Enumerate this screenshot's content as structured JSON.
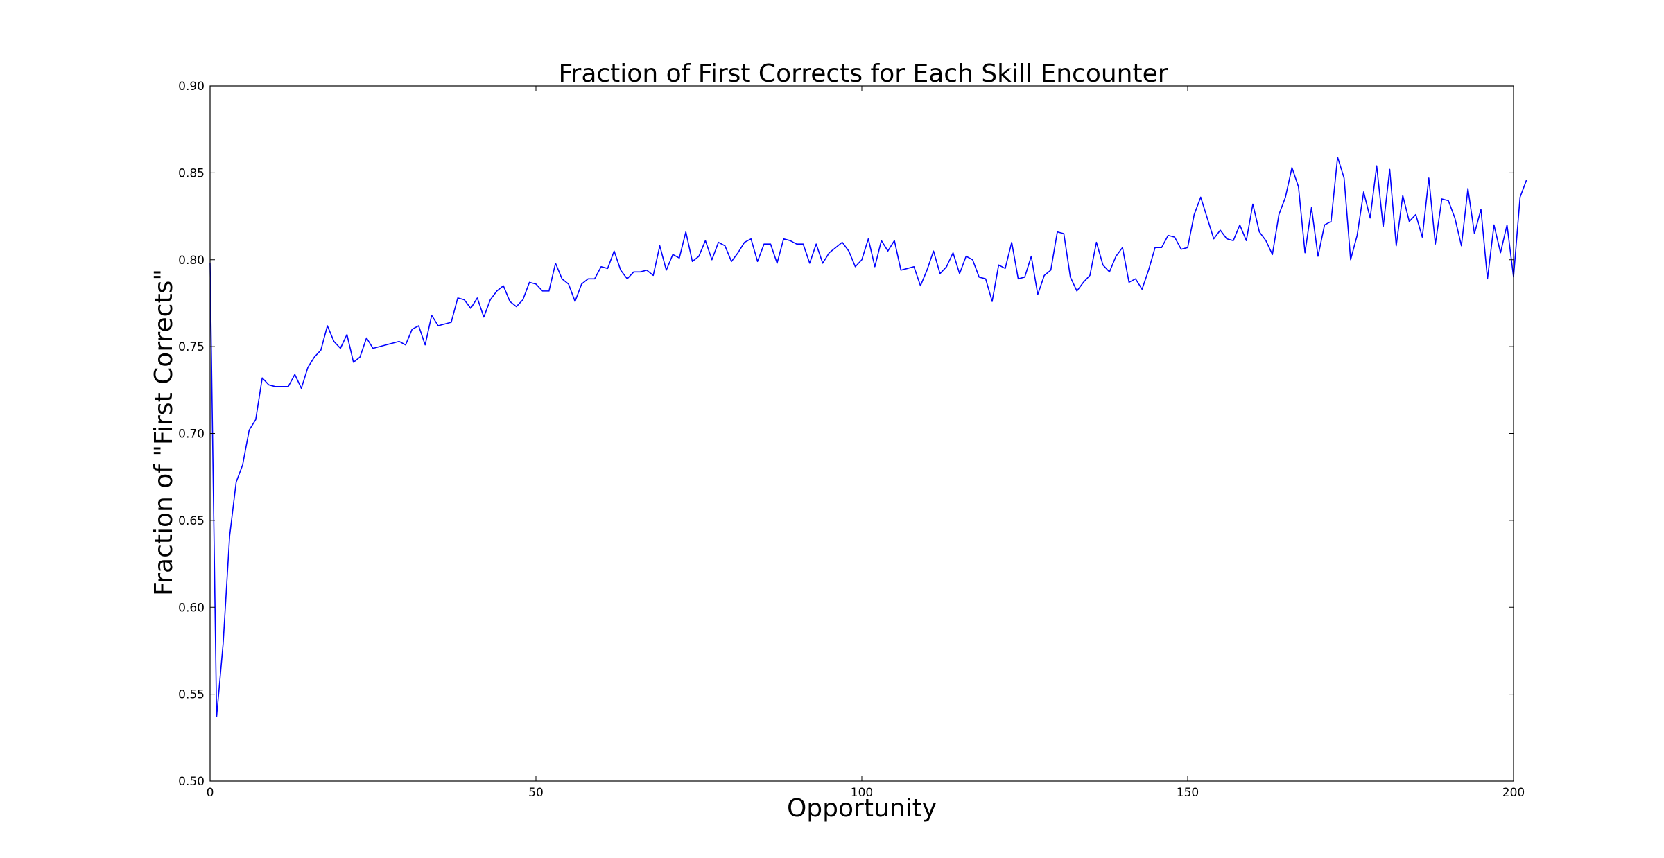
{
  "chart_data": {
    "type": "line",
    "title": "Fraction of First Corrects for Each Skill Encounter",
    "xlabel": "Opportunity",
    "ylabel": "Fraction of \"First Corrects\"",
    "xlim": [
      0,
      200
    ],
    "ylim": [
      0.5,
      0.9
    ],
    "xticks": [
      0,
      50,
      100,
      150,
      200
    ],
    "xtick_labels": [
      "0",
      "50",
      "100",
      "150",
      "200"
    ],
    "yticks": [
      0.5,
      0.55,
      0.6,
      0.65,
      0.7,
      0.75,
      0.8,
      0.85,
      0.9
    ],
    "ytick_labels": [
      "0.50",
      "0.55",
      "0.60",
      "0.65",
      "0.70",
      "0.75",
      "0.80",
      "0.85",
      "0.90"
    ],
    "grid": false,
    "line_color": "#0000ff",
    "series": [
      {
        "x_start": 0,
        "x_step": 1,
        "values": [
          0.798,
          0.537,
          0.579,
          0.641,
          0.672,
          0.682,
          0.702,
          0.708,
          0.732,
          0.728,
          0.727,
          0.727,
          0.727,
          0.734,
          0.726,
          0.738,
          0.744,
          0.748,
          0.762,
          0.753,
          0.749,
          0.757,
          0.741,
          0.744,
          0.755,
          0.749,
          0.75,
          0.751,
          0.752,
          0.753,
          0.751,
          0.76,
          0.762,
          0.751,
          0.768,
          0.762,
          0.763,
          0.764,
          0.778,
          0.777,
          0.772,
          0.778,
          0.767,
          0.777,
          0.782,
          0.785,
          0.776,
          0.773,
          0.777,
          0.787,
          0.786,
          0.782,
          0.782,
          0.798,
          0.789,
          0.786,
          0.776,
          0.786,
          0.789,
          0.789,
          0.796,
          0.795,
          0.805,
          0.794,
          0.789,
          0.793,
          0.793,
          0.794,
          0.791,
          0.808,
          0.794,
          0.803,
          0.801,
          0.816,
          0.799,
          0.802,
          0.811,
          0.8,
          0.81,
          0.808,
          0.799,
          0.804,
          0.81,
          0.812,
          0.799,
          0.809,
          0.809,
          0.798,
          0.812,
          0.811,
          0.809,
          0.809,
          0.798,
          0.809,
          0.798,
          0.804,
          0.807,
          0.81,
          0.805,
          0.796,
          0.8,
          0.812,
          0.796,
          0.811,
          0.805,
          0.811,
          0.794,
          0.795,
          0.796,
          0.785,
          0.794,
          0.805,
          0.792,
          0.796,
          0.804,
          0.792,
          0.802,
          0.8,
          0.79,
          0.789,
          0.776,
          0.797,
          0.795,
          0.81,
          0.789,
          0.79,
          0.802,
          0.78,
          0.791,
          0.794,
          0.816,
          0.815,
          0.79,
          0.782,
          0.787,
          0.791,
          0.81,
          0.797,
          0.793,
          0.802,
          0.807,
          0.787,
          0.789,
          0.783,
          0.794,
          0.807,
          0.807,
          0.814,
          0.813,
          0.806,
          0.807,
          0.826,
          0.836,
          0.824,
          0.812,
          0.817,
          0.812,
          0.811,
          0.82,
          0.811,
          0.832,
          0.816,
          0.811,
          0.803,
          0.826,
          0.836,
          0.853,
          0.842,
          0.804,
          0.83,
          0.802,
          0.82,
          0.822,
          0.859,
          0.847,
          0.8,
          0.814,
          0.839,
          0.824,
          0.854,
          0.819,
          0.852,
          0.808,
          0.837,
          0.822,
          0.826,
          0.813,
          0.847,
          0.809,
          0.835,
          0.834,
          0.824,
          0.808,
          0.841,
          0.815,
          0.829,
          0.789,
          0.82,
          0.804,
          0.82,
          0.79,
          0.836,
          0.846
        ]
      }
    ]
  }
}
